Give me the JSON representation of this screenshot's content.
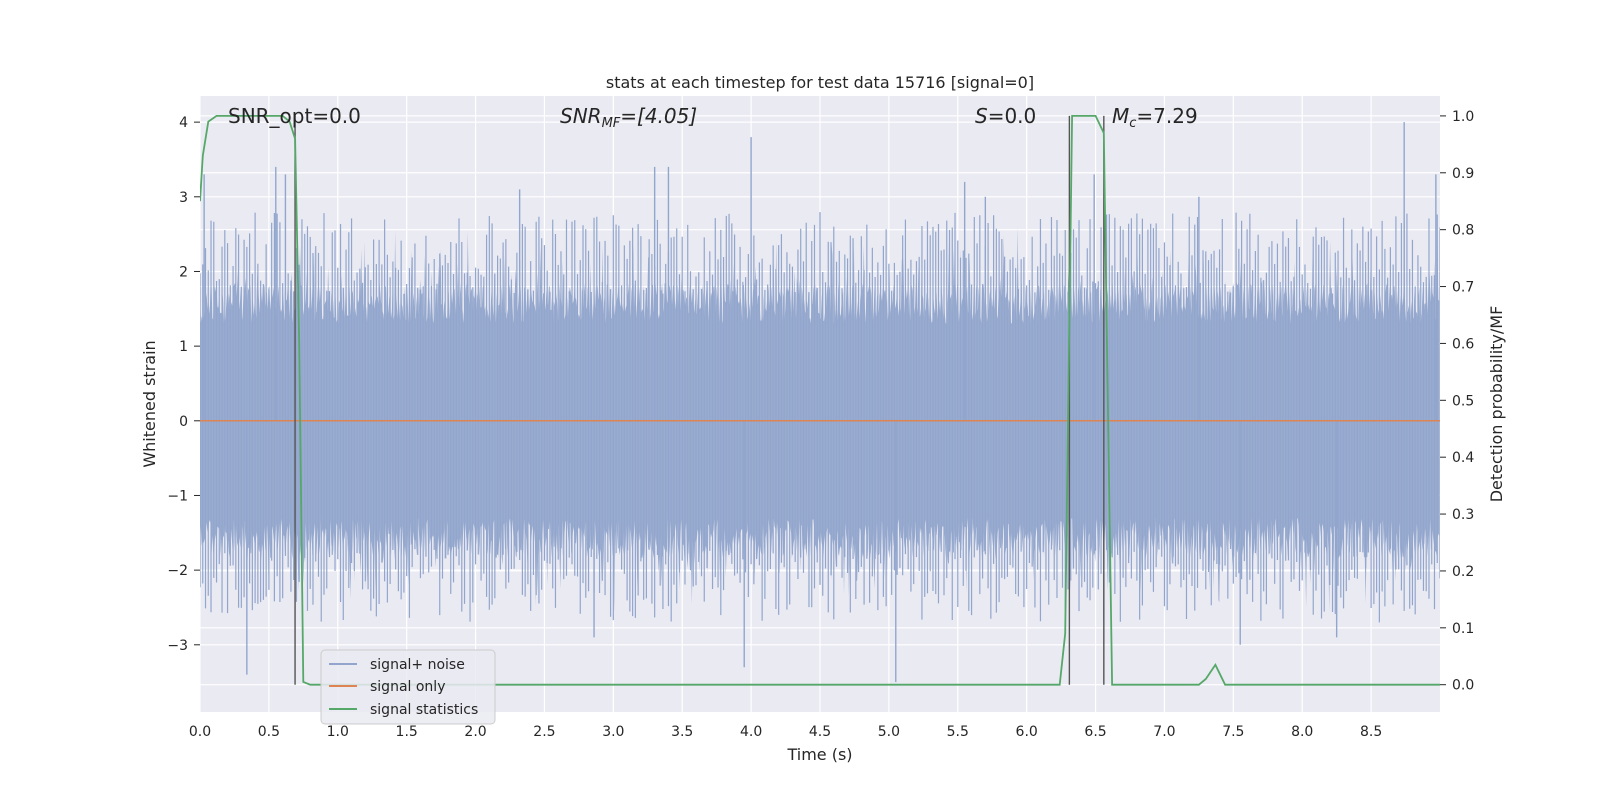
{
  "chart_data": {
    "type": "line",
    "title": "stats at each timestep for test data 15716 [signal=0]",
    "xlabel": "Time (s)",
    "ylabel": "Whitened strain",
    "y2label": "Detection probability/MF",
    "xlim": [
      0,
      9.0
    ],
    "ylim": [
      -3.9,
      4.35
    ],
    "y2lim": [
      -0.048,
      1.035
    ],
    "x_ticks": [
      0.0,
      0.5,
      1.0,
      1.5,
      2.0,
      2.5,
      3.0,
      3.5,
      4.0,
      4.5,
      5.0,
      5.5,
      6.0,
      6.5,
      7.0,
      7.5,
      8.0,
      8.5
    ],
    "x_tick_labels": [
      "0.0",
      "0.5",
      "1.0",
      "1.5",
      "2.0",
      "2.5",
      "3.0",
      "3.5",
      "4.0",
      "4.5",
      "5.0",
      "5.5",
      "6.0",
      "6.5",
      "7.0",
      "7.5",
      "8.0",
      "8.5"
    ],
    "y_ticks": [
      -3,
      -2,
      -1,
      0,
      1,
      2,
      3,
      4
    ],
    "y_tick_labels": [
      "−3",
      "−2",
      "−1",
      "0",
      "1",
      "2",
      "3",
      "4"
    ],
    "y2_ticks": [
      0.0,
      0.1,
      0.2,
      0.3,
      0.4,
      0.5,
      0.6,
      0.7,
      0.8,
      0.9,
      1.0
    ],
    "y2_tick_labels": [
      "0.0",
      "0.1",
      "0.2",
      "0.3",
      "0.4",
      "0.5",
      "0.6",
      "0.7",
      "0.8",
      "0.9",
      "1.0"
    ],
    "grid": true,
    "legend_position": "lower-left",
    "annotations": {
      "snr_opt": "SNR_opt=0.0",
      "snr_mf_main": "SNR",
      "snr_mf_sub": "MF",
      "snr_mf_value": "=[4.05]",
      "s_label": "S",
      "s_value": "=0.0",
      "mc_main": "M",
      "mc_sub": "c",
      "mc_value": "=7.29"
    },
    "vlines_x": [
      0.69,
      6.31,
      6.56
    ],
    "series": [
      {
        "name": "signal+ noise",
        "color": "#92a6cd",
        "description_values": "noise band roughly within [-1.8, 1.8] with spikes up to about 4.0 and down to about -3.5",
        "peaks": [
          [
            0.03,
            3.3
          ],
          [
            0.34,
            -3.4
          ],
          [
            0.55,
            3.4
          ],
          [
            0.62,
            3.3
          ],
          [
            2.32,
            3.1
          ],
          [
            2.86,
            -2.9
          ],
          [
            3.3,
            3.4
          ],
          [
            3.4,
            3.4
          ],
          [
            3.95,
            -3.3
          ],
          [
            4.0,
            3.8
          ],
          [
            5.05,
            -3.5
          ],
          [
            5.55,
            3.2
          ],
          [
            5.7,
            3.0
          ],
          [
            6.49,
            3.3
          ],
          [
            7.25,
            3.0
          ],
          [
            7.55,
            -3.0
          ],
          [
            8.25,
            -2.9
          ],
          [
            8.74,
            4.0
          ],
          [
            8.97,
            3.3
          ]
        ]
      },
      {
        "name": "signal only",
        "color": "#dd8452",
        "x": [
          0,
          9.0
        ],
        "y": [
          0,
          0
        ]
      },
      {
        "name": "signal statistics",
        "color": "#55a868",
        "axis": "right",
        "x": [
          0.0,
          0.02,
          0.06,
          0.12,
          0.2,
          0.3,
          0.4,
          0.5,
          0.6,
          0.65,
          0.69,
          0.72,
          0.75,
          0.8,
          0.9,
          1.0,
          2.0,
          3.0,
          4.0,
          5.0,
          6.0,
          6.24,
          6.28,
          6.33,
          6.38,
          6.44,
          6.5,
          6.56,
          6.62,
          6.7,
          7.0,
          7.25,
          7.3,
          7.37,
          7.44,
          7.5,
          8.0,
          9.0
        ],
        "y": [
          0.85,
          0.93,
          0.99,
          1.0,
          1.0,
          1.0,
          1.0,
          1.0,
          1.0,
          0.99,
          0.96,
          0.6,
          0.005,
          0.0,
          0.0,
          0.0,
          0.0,
          0.0,
          0.0,
          0.0,
          0.0,
          0.0,
          0.09,
          1.0,
          1.0,
          1.0,
          1.0,
          0.97,
          0.0,
          0.0,
          0.0,
          0.0,
          0.01,
          0.035,
          0.0,
          0.0,
          0.0,
          0.0
        ]
      }
    ]
  }
}
